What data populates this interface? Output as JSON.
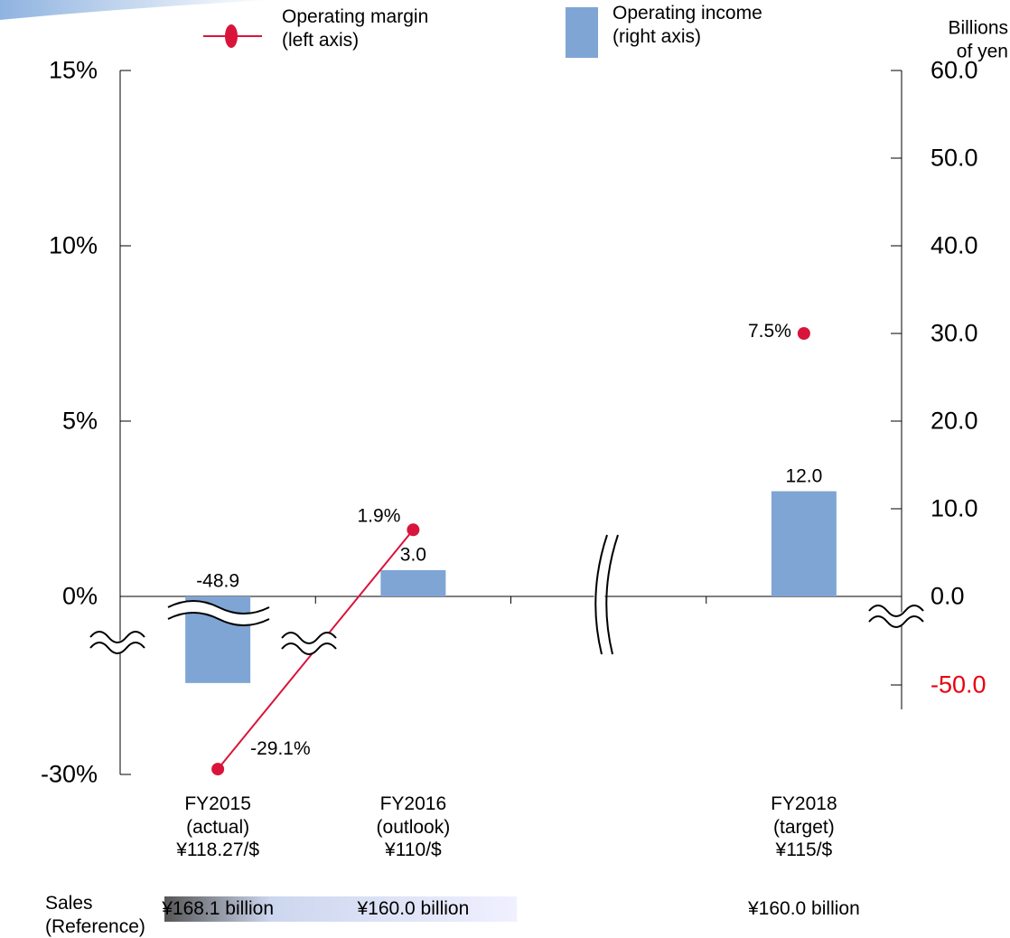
{
  "chart_data": {
    "type": "bar",
    "y2_title": "Billions of yen",
    "categories": [
      "FY2015\n(actual)\n¥118.27/$",
      "FY2016\n(outlook)\n¥110/$",
      null,
      "FY2018\n(target)\n¥115/$"
    ],
    "sales_label": "Sales\n(Reference)",
    "sales": [
      "¥168.1 billion",
      "¥160.0 billion",
      null,
      "¥160.0 billion"
    ],
    "series": [
      {
        "name": "Operating margin\n(left axis)",
        "type": "line",
        "axis": "y",
        "color": "#d9143a",
        "values": [
          -29.1,
          1.9,
          null,
          7.5
        ],
        "value_labels": [
          "-29.1%",
          "1.9%",
          null,
          "7.5%"
        ]
      },
      {
        "name": "Operating income\n(right axis)",
        "type": "bar",
        "axis": "y2",
        "color": "#7fa5d4",
        "values": [
          -48.9,
          3.0,
          null,
          12.0
        ],
        "value_labels": [
          "-48.9",
          "3.0",
          null,
          "12.0"
        ]
      }
    ],
    "ylim": [
      -30,
      15
    ],
    "yticks": [
      {
        "value": -30,
        "label": "-30%"
      },
      {
        "value": 0,
        "label": "0%"
      },
      {
        "value": 5,
        "label": "5%"
      },
      {
        "value": 10,
        "label": "10%"
      },
      {
        "value": 15,
        "label": "15%"
      }
    ],
    "y2lim": [
      -50,
      60
    ],
    "y2ticks": [
      {
        "value": -50,
        "label": "-50.0"
      },
      {
        "value": 0,
        "label": "0.0"
      },
      {
        "value": 10,
        "label": "10.0"
      },
      {
        "value": 20,
        "label": "20.0"
      },
      {
        "value": 30,
        "label": "30.0"
      },
      {
        "value": 40,
        "label": "40.0"
      },
      {
        "value": 50,
        "label": "50.0"
      },
      {
        "value": 60,
        "label": "60.0"
      }
    ],
    "negative_tick_color": "#e8000f",
    "axis_break": true
  }
}
